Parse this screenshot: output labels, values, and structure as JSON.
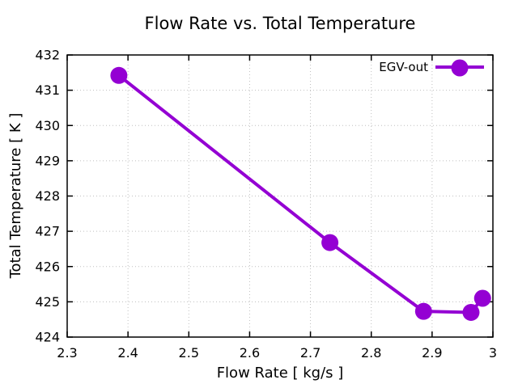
{
  "figure": {
    "background": "#ffffff"
  },
  "legend": {
    "label": "EGV-out",
    "position": "top-right-inside",
    "has_box": false
  },
  "colors": {
    "accent": "#9400D3",
    "grid": "#bfbfbf",
    "axis": "#000000",
    "text": "#000000",
    "background": "#ffffff"
  },
  "chart_data": {
    "type": "line",
    "title": "Flow Rate vs. Total Temperature",
    "xlabel": "Flow Rate [ kg/s ]",
    "ylabel": "Total Temperature [ K ]",
    "xlim": [
      2.3,
      3.0
    ],
    "ylim": [
      424,
      432
    ],
    "xticks": {
      "values": [
        2.3,
        2.4,
        2.5,
        2.6,
        2.7,
        2.8,
        2.9,
        3.0
      ],
      "labels": [
        "2.3",
        "2.4",
        "2.5",
        "2.6",
        "2.7",
        "2.8",
        "2.9",
        "3"
      ]
    },
    "yticks": {
      "values": [
        424,
        425,
        426,
        427,
        428,
        429,
        430,
        431,
        432
      ],
      "labels": [
        "424",
        "425",
        "426",
        "427",
        "428",
        "429",
        "430",
        "431",
        "432"
      ]
    },
    "grid": "dotted",
    "legend_position": "top-right-inside",
    "series": [
      {
        "name": "EGV-out",
        "color": "#9400D3",
        "marker": "circle",
        "marker_radius": 10.5,
        "line_width": 4,
        "x": [
          2.385,
          2.732,
          2.886,
          2.964,
          2.983
        ],
        "y": [
          431.42,
          426.68,
          424.73,
          424.7,
          425.1
        ]
      }
    ]
  }
}
